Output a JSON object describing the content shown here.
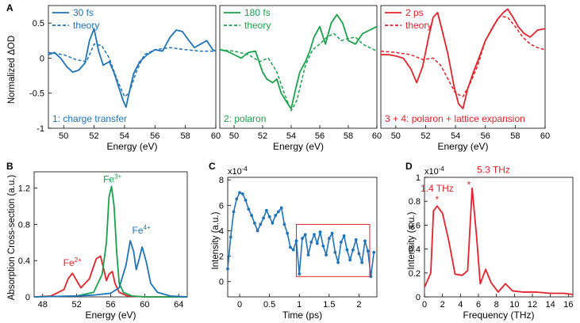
{
  "chart_data": [
    {
      "id": "A1",
      "panel_label": "A",
      "type": "line",
      "xlabel": "Energy (eV)",
      "ylabel": "Normalized ΔOD",
      "xlim": [
        49,
        60
      ],
      "ylim": [
        -1,
        0.75
      ],
      "xticks": [
        50,
        52,
        54,
        56,
        58,
        60
      ],
      "xtick_labels": [
        "50",
        "52",
        "54",
        "56",
        "58",
        "60"
      ],
      "yticks": [
        0.5,
        0,
        -0.5,
        -1
      ],
      "ytick_labels": [
        "0.5",
        "0",
        "-0.5",
        "-1"
      ],
      "color": "#1f73b8",
      "legend": [
        {
          "name": "30 fs",
          "style": "solid"
        },
        {
          "name": "theory",
          "style": "dashed"
        }
      ],
      "annotation": "1: charge transfer",
      "series": [
        {
          "name": "30 fs",
          "style": "solid",
          "x": [
            49,
            49.4,
            49.8,
            50.2,
            50.6,
            51,
            51.4,
            51.7,
            52,
            52.3,
            52.6,
            53,
            53.3,
            53.6,
            53.9,
            54.1,
            54.3,
            54.6,
            55,
            55.5,
            56,
            56.5,
            57,
            57.4,
            57.8,
            58.2,
            58.6,
            59,
            59.4,
            59.8,
            60
          ],
          "y": [
            0.05,
            0.08,
            0.0,
            -0.12,
            -0.2,
            -0.17,
            -0.07,
            0.25,
            0.42,
            0.1,
            -0.1,
            -0.05,
            -0.2,
            -0.4,
            -0.6,
            -0.7,
            -0.5,
            -0.22,
            -0.05,
            0.05,
            0.12,
            0.1,
            0.3,
            0.4,
            0.38,
            0.26,
            0.15,
            0.2,
            0.25,
            0.12,
            0.1
          ]
        },
        {
          "name": "theory",
          "style": "dashed",
          "x": [
            49,
            50,
            50.8,
            51.5,
            52,
            52.5,
            53,
            53.5,
            54,
            54.3,
            54.8,
            55.3,
            56,
            57,
            58,
            59,
            60
          ],
          "y": [
            0.08,
            0.05,
            -0.02,
            -0.05,
            0.2,
            0.18,
            0.0,
            -0.3,
            -0.55,
            -0.5,
            -0.18,
            0.05,
            0.12,
            0.15,
            0.12,
            0.1,
            0.1
          ]
        }
      ]
    },
    {
      "id": "A2",
      "type": "line",
      "xlabel": "Energy (eV)",
      "xlim": [
        49,
        60
      ],
      "ylim": [
        -1,
        0.75
      ],
      "xticks": [
        50,
        52,
        54,
        56,
        58,
        60
      ],
      "xtick_labels": [
        "50",
        "52",
        "54",
        "56",
        "58",
        "60"
      ],
      "color": "#1aa14c",
      "legend": [
        {
          "name": "180 fs",
          "style": "solid"
        },
        {
          "name": "theory",
          "style": "dashed"
        }
      ],
      "annotation": "2: polaron",
      "series": [
        {
          "name": "180 fs",
          "style": "solid",
          "x": [
            49,
            49.5,
            50,
            50.5,
            51,
            51.5,
            52,
            52.3,
            52.7,
            53,
            53.3,
            53.6,
            54,
            54.3,
            54.6,
            55,
            55.3,
            55.6,
            56,
            56.4,
            56.8,
            57.2,
            57.6,
            58,
            58.5,
            59,
            59.5,
            60
          ],
          "y": [
            0.12,
            0.1,
            0.05,
            0.0,
            0.08,
            0.1,
            -0.2,
            -0.3,
            -0.35,
            -0.3,
            -0.5,
            -0.6,
            -0.72,
            -0.45,
            -0.2,
            -0.05,
            0.1,
            0.3,
            0.45,
            0.2,
            0.5,
            0.62,
            0.5,
            0.25,
            0.2,
            0.35,
            0.4,
            0.45
          ]
        },
        {
          "name": "theory",
          "style": "dashed",
          "x": [
            49,
            50,
            51,
            51.8,
            52.4,
            53,
            53.6,
            54,
            54.4,
            55,
            55.5,
            56,
            56.5,
            57,
            57.5,
            58,
            58.5,
            59,
            59.5,
            60
          ],
          "y": [
            0.12,
            0.1,
            0.05,
            -0.05,
            0.0,
            -0.2,
            -0.55,
            -0.75,
            -0.6,
            -0.1,
            0.12,
            0.2,
            0.3,
            0.35,
            0.25,
            0.28,
            0.3,
            0.2,
            0.15,
            0.1
          ]
        }
      ]
    },
    {
      "id": "A3",
      "type": "line",
      "xlabel": "Energy (eV)",
      "xlim": [
        49,
        60
      ],
      "ylim": [
        -1,
        0.75
      ],
      "xticks": [
        50,
        52,
        54,
        56,
        58,
        60
      ],
      "xtick_labels": [
        "50",
        "52",
        "54",
        "56",
        "58",
        "60"
      ],
      "color": "#e3222b",
      "legend": [
        {
          "name": "2 ps",
          "style": "solid"
        },
        {
          "name": "theory",
          "style": "dashed"
        }
      ],
      "annotation": "3 + 4: polaron + lattice expansion",
      "series": [
        {
          "name": "2 ps",
          "style": "solid",
          "x": [
            49,
            49.5,
            50,
            50.5,
            51,
            51.4,
            51.8,
            52.2,
            52.5,
            52.8,
            53.1,
            53.5,
            53.9,
            54.2,
            54.5,
            54.8,
            55.2,
            55.6,
            56,
            56.4,
            56.8,
            57.2,
            57.5,
            57.8,
            58.2,
            58.6,
            59,
            59.5,
            60
          ],
          "y": [
            0.05,
            0.05,
            0.03,
            0.0,
            -0.15,
            -0.35,
            -0.12,
            0.3,
            0.58,
            0.65,
            0.4,
            0.05,
            -0.4,
            -0.65,
            -0.72,
            -0.45,
            -0.2,
            0.02,
            0.25,
            0.4,
            0.55,
            0.65,
            0.7,
            0.6,
            0.45,
            0.35,
            0.3,
            0.4,
            0.42
          ]
        },
        {
          "name": "theory",
          "style": "dashed",
          "x": [
            49,
            50,
            51,
            51.8,
            52.5,
            53,
            53.5,
            54,
            54.5,
            55,
            55.5,
            56,
            56.5,
            57,
            57.5,
            58,
            58.5,
            59,
            59.5,
            60
          ],
          "y": [
            0.1,
            0.08,
            0.05,
            -0.02,
            0.0,
            -0.1,
            -0.3,
            -0.5,
            -0.55,
            -0.35,
            -0.1,
            0.25,
            0.45,
            0.6,
            0.58,
            0.45,
            0.3,
            0.2,
            0.15,
            0.12
          ]
        }
      ]
    },
    {
      "id": "B",
      "panel_label": "B",
      "type": "line",
      "xlabel": "Energy (eV)",
      "ylabel": "Absorption Cross-section (a.u.)",
      "xlim": [
        47,
        65
      ],
      "ylim": [
        0,
        1.38
      ],
      "xticks": [
        48,
        52,
        56,
        60,
        64
      ],
      "xtick_labels": [
        "48",
        "52",
        "56",
        "60",
        "64"
      ],
      "yticks": [
        0,
        0.4,
        0.8,
        1.2
      ],
      "ytick_labels": [
        "0",
        "0.4",
        "0.8",
        "1.2"
      ],
      "series": [
        {
          "name": "Fe2+",
          "color": "#e3222b",
          "label": "Fe",
          "label_sup": "2+",
          "x": [
            47,
            49,
            50.5,
            51,
            51.5,
            52,
            52.5,
            53.5,
            54.3,
            54.8,
            55.2,
            55.5,
            55.8,
            56.2,
            56.5,
            57,
            58,
            60,
            65
          ],
          "y": [
            0,
            0.01,
            0.08,
            0.2,
            0.26,
            0.18,
            0.1,
            0.2,
            0.42,
            0.45,
            0.3,
            0.18,
            0.25,
            0.28,
            0.15,
            0.05,
            0.01,
            0,
            0
          ]
        },
        {
          "name": "Fe3+",
          "color": "#1aa14c",
          "label": "Fe",
          "label_sup": "3+",
          "x": [
            47,
            52,
            54,
            55,
            55.5,
            55.8,
            56.1,
            56.4,
            56.7,
            57,
            57.5,
            58.5,
            60,
            65
          ],
          "y": [
            0,
            0.01,
            0.05,
            0.25,
            0.6,
            1.1,
            1.22,
            1.0,
            0.5,
            0.15,
            0.05,
            0.01,
            0,
            0
          ]
        },
        {
          "name": "Fe4+",
          "color": "#1f73b8",
          "label": "Fe",
          "label_sup": "4+",
          "x": [
            47,
            52,
            54,
            56,
            57,
            57.8,
            58.3,
            58.7,
            59,
            59.3,
            59.7,
            60.2,
            60.7,
            61.5,
            63,
            65
          ],
          "y": [
            0,
            0.01,
            0.02,
            0.04,
            0.1,
            0.35,
            0.62,
            0.5,
            0.3,
            0.4,
            0.55,
            0.38,
            0.15,
            0.05,
            0.01,
            0
          ]
        }
      ]
    },
    {
      "id": "C",
      "panel_label": "C",
      "type": "line",
      "xlabel": "Time (ps)",
      "ylabel": "Intensity (a.u.)",
      "xlim": [
        -0.2,
        2.3
      ],
      "ylim": [
        -1.2,
        8.2
      ],
      "xticks": [
        0,
        0.5,
        1,
        1.5,
        2
      ],
      "xtick_labels": [
        "0",
        "0.5",
        "1",
        "1.5",
        "2"
      ],
      "yticks": [
        0,
        2,
        4,
        6,
        8
      ],
      "ytick_labels": [
        "0",
        "2",
        "4",
        "6",
        "8"
      ],
      "multiplier": "x10",
      "multiplier_exp": "-4",
      "color": "#1f73b8",
      "box_color": "#e3222b",
      "box_x": [
        0.95,
        2.18
      ],
      "box_y": [
        0.4,
        4.5
      ],
      "series": [
        {
          "name": "signal",
          "x": [
            -0.2,
            -0.15,
            -0.1,
            -0.05,
            0.0,
            0.05,
            0.1,
            0.15,
            0.2,
            0.25,
            0.3,
            0.35,
            0.4,
            0.45,
            0.5,
            0.55,
            0.6,
            0.65,
            0.7,
            0.75,
            0.8,
            0.85,
            0.9,
            0.95,
            1.0,
            1.05,
            1.1,
            1.15,
            1.2,
            1.25,
            1.3,
            1.35,
            1.4,
            1.45,
            1.5,
            1.55,
            1.6,
            1.65,
            1.7,
            1.75,
            1.8,
            1.85,
            1.9,
            1.95,
            2.0,
            2.05,
            2.1,
            2.15,
            2.2,
            2.25
          ],
          "y": [
            1.0,
            3.5,
            5.5,
            6.5,
            7.0,
            6.9,
            6.4,
            5.7,
            5.2,
            4.6,
            4.0,
            4.5,
            5.0,
            5.6,
            5.1,
            4.6,
            5.2,
            5.5,
            5.8,
            4.5,
            3.8,
            2.7,
            2.5,
            3.2,
            0.6,
            3.4,
            3.7,
            2.1,
            3.1,
            3.7,
            3.0,
            3.9,
            2.8,
            2.1,
            3.4,
            3.8,
            2.3,
            1.5,
            3.1,
            3.6,
            2.5,
            1.7,
            2.5,
            3.3,
            2.2,
            1.5,
            3.2,
            2.4,
            0.4,
            2.3
          ]
        }
      ]
    },
    {
      "id": "D",
      "panel_label": "D",
      "type": "line",
      "xlabel": "Frequency (THz)",
      "ylabel": "Intensity (a.u.)",
      "xlim": [
        0,
        16.5
      ],
      "ylim": [
        0,
        1.0
      ],
      "xticks": [
        0,
        2,
        4,
        6,
        8,
        10,
        12,
        14,
        16
      ],
      "xtick_labels": [
        "0",
        "2",
        "4",
        "6",
        "8",
        "10",
        "12",
        "14",
        "16"
      ],
      "yticks": [
        0,
        0.2,
        0.4,
        0.6,
        0.8,
        1
      ],
      "ytick_labels": [
        "0",
        "0.2",
        "0.4",
        "0.6",
        "0.8",
        "1"
      ],
      "multiplier": "x10",
      "multiplier_exp": "-4",
      "color": "#e3222b",
      "peaks": [
        {
          "x": 1.4,
          "y": 0.76,
          "label": "1.4 THz",
          "marker": "*"
        },
        {
          "x": 5.3,
          "y": 0.91,
          "label": "5.3 THz",
          "marker": "*"
        }
      ],
      "series": [
        {
          "name": "spectrum",
          "x": [
            0,
            0.7,
            1.0,
            1.4,
            2.0,
            2.7,
            3.4,
            4.2,
            4.8,
            5.3,
            5.8,
            6.2,
            6.8,
            7.4,
            8.2,
            9.0,
            9.8,
            11,
            12.5,
            14,
            15.5,
            16.5
          ],
          "y": [
            0.08,
            0.2,
            0.72,
            0.76,
            0.7,
            0.47,
            0.19,
            0.18,
            0.22,
            0.91,
            0.5,
            0.11,
            0.23,
            0.12,
            0.04,
            0.11,
            0.05,
            0.04,
            0.04,
            0.03,
            0.03,
            0.02
          ]
        }
      ]
    }
  ]
}
